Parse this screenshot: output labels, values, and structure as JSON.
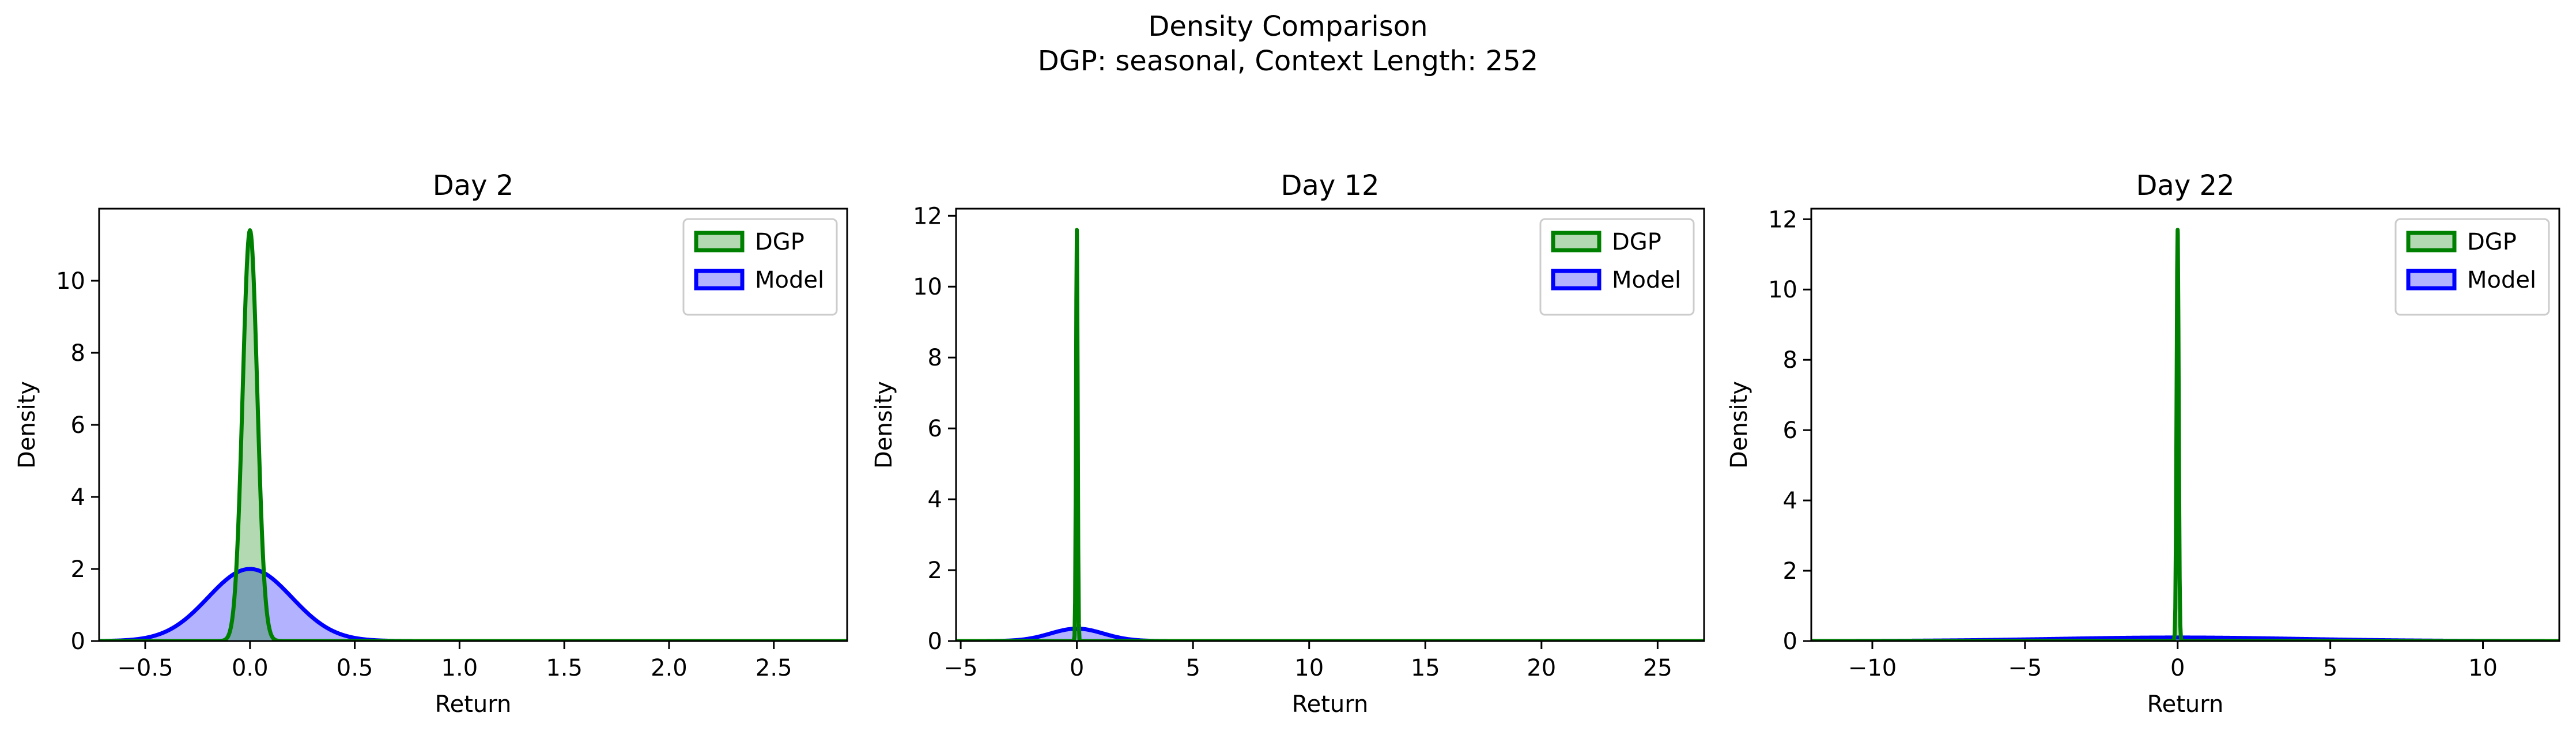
{
  "figure": {
    "title_line1": "Density Comparison",
    "title_line2": "DGP: seasonal, Context Length: 252"
  },
  "colors": {
    "dgp": "#008000",
    "model": "#0000ff",
    "overlap": "#1f5a5a"
  },
  "legend": {
    "dgp_label": "DGP",
    "model_label": "Model"
  },
  "chart_data": [
    {
      "type": "area",
      "title": "Day 2",
      "xlabel": "Return",
      "ylabel": "Density",
      "xlim": [
        -0.72,
        2.85
      ],
      "ylim": [
        0,
        12
      ],
      "xticks": [
        -0.5,
        0.0,
        0.5,
        1.0,
        1.5,
        2.0,
        2.5
      ],
      "xtick_labels": [
        "−0.5",
        "0.0",
        "0.5",
        "1.0",
        "1.5",
        "2.0",
        "2.5"
      ],
      "yticks": [
        0,
        2,
        4,
        6,
        8,
        10
      ],
      "yticks_labels": [
        "0",
        "2",
        "4",
        "6",
        "8",
        "10"
      ],
      "legend_position": "upper right",
      "series": [
        {
          "name": "DGP",
          "color": "#008000",
          "distribution": "normal",
          "mean": 0.0,
          "peak_density": 11.4
        },
        {
          "name": "Model",
          "color": "#0000ff",
          "distribution": "normal",
          "mean": 0.0,
          "peak_density": 2.0
        }
      ]
    },
    {
      "type": "area",
      "title": "Day 12",
      "xlabel": "Return",
      "ylabel": "Density",
      "xlim": [
        -5.2,
        27.0
      ],
      "ylim": [
        0,
        12.2
      ],
      "xticks": [
        -5,
        0,
        5,
        10,
        15,
        20,
        25
      ],
      "xtick_labels": [
        "−5",
        "0",
        "5",
        "10",
        "15",
        "20",
        "25"
      ],
      "yticks": [
        0,
        2,
        4,
        6,
        8,
        10,
        12
      ],
      "yticks_labels": [
        "0",
        "2",
        "4",
        "6",
        "8",
        "10",
        "12"
      ],
      "legend_position": "upper right",
      "series": [
        {
          "name": "DGP",
          "color": "#008000",
          "distribution": "normal",
          "mean": 0.0,
          "peak_density": 11.6
        },
        {
          "name": "Model",
          "color": "#0000ff",
          "distribution": "normal",
          "mean": 0.0,
          "peak_density": 0.35
        }
      ]
    },
    {
      "type": "area",
      "title": "Day 22",
      "xlabel": "Return",
      "ylabel": "Density",
      "xlim": [
        -12.0,
        12.5
      ],
      "ylim": [
        0,
        12.3
      ],
      "xticks": [
        -10,
        -5,
        0,
        5,
        10
      ],
      "xtick_labels": [
        "−10",
        "−5",
        "0",
        "5",
        "10"
      ],
      "yticks": [
        0,
        2,
        4,
        6,
        8,
        10,
        12
      ],
      "yticks_labels": [
        "0",
        "2",
        "4",
        "6",
        "8",
        "10",
        "12"
      ],
      "legend_position": "upper right",
      "series": [
        {
          "name": "DGP",
          "color": "#008000",
          "distribution": "normal",
          "mean": 0.0,
          "peak_density": 11.7
        },
        {
          "name": "Model",
          "color": "#0000ff",
          "distribution": "normal",
          "mean": 0.0,
          "peak_density": 0.1
        }
      ]
    }
  ]
}
